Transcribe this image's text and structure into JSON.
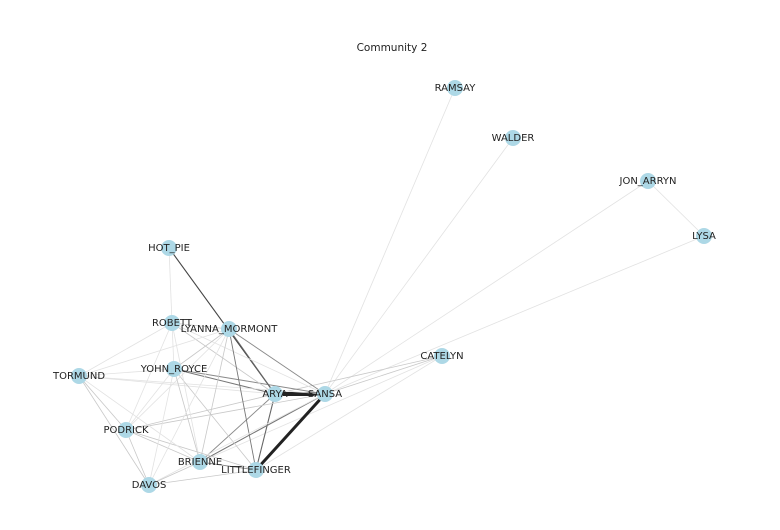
{
  "title": "Community 2",
  "nodes": [
    "RAMSAY",
    "WALDER",
    "JON_ARRYN",
    "LYSA",
    "HOT_PIE",
    "ROBETT",
    "LYANNA_MORMONT",
    "CATELYN",
    "YOHN_ROYCE",
    "TORMUND",
    "ARYA",
    "SANSA",
    "PODRICK",
    "BRIENNE",
    "LITTLEFINGER",
    "DAVOS"
  ]
}
